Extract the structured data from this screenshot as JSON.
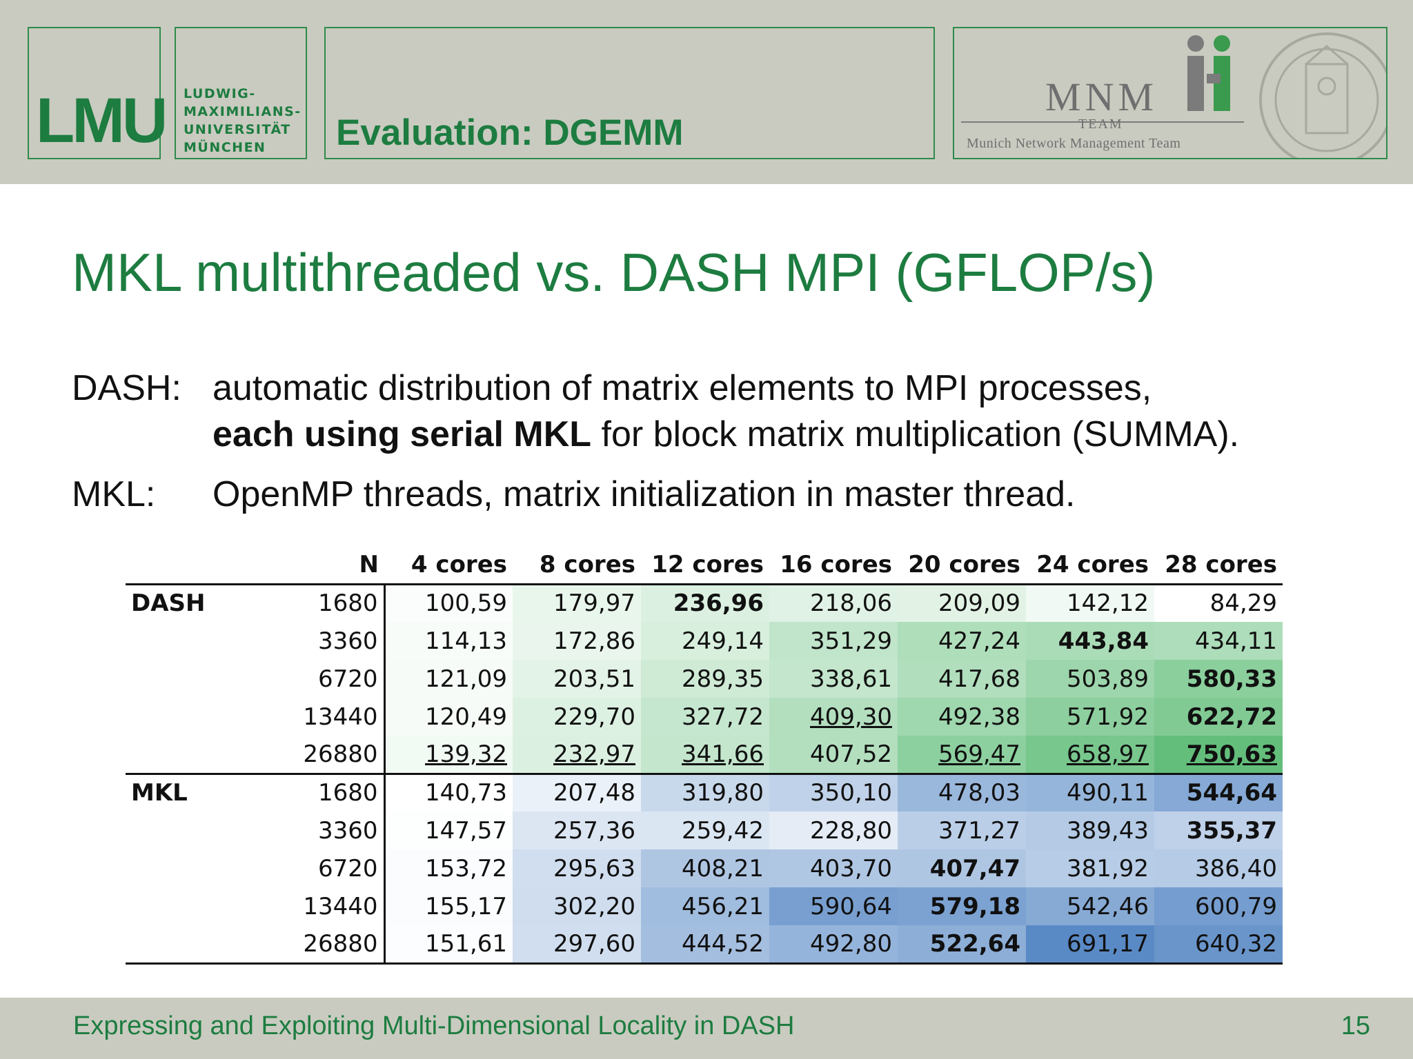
{
  "header": {
    "logo_text": "LMU",
    "university_lines": "LUDWIG-\nMAXIMILIANS-\nUNIVERSITÄT\nMÜNCHEN",
    "section_title": "Evaluation: DGEMM",
    "partner_logo": {
      "word": "MNM",
      "team": "TEAM",
      "full_name": "Munich Network Management Team"
    }
  },
  "slide": {
    "title": "MKL multithreaded vs. DASH MPI (GFLOP/s)",
    "dash_label": "DASH:",
    "dash_line1": "automatic distribution of matrix elements to MPI processes,",
    "dash_line2_bold": "each using serial MKL",
    "dash_line2_rest": " for block matrix multiplication (SUMMA).",
    "mkl_label": "MKL:",
    "mkl_line": "OpenMP threads, matrix initialization in master thread."
  },
  "table": {
    "headers": [
      "",
      "N",
      "4 cores",
      "8 cores",
      "12 cores",
      "16 cores",
      "20 cores",
      "24 cores",
      "28 cores"
    ],
    "groups": [
      {
        "label": "DASH",
        "palette": "green",
        "rows": [
          {
            "n": "1680",
            "cells": [
              "100,59",
              "179,97",
              "236,96",
              "218,06",
              "209,09",
              "142,12",
              "84,29"
            ],
            "bold": [
              2
            ],
            "underline": []
          },
          {
            "n": "3360",
            "cells": [
              "114,13",
              "172,86",
              "249,14",
              "351,29",
              "427,24",
              "443,84",
              "434,11"
            ],
            "bold": [
              5
            ],
            "underline": []
          },
          {
            "n": "6720",
            "cells": [
              "121,09",
              "203,51",
              "289,35",
              "338,61",
              "417,68",
              "503,89",
              "580,33"
            ],
            "bold": [
              6
            ],
            "underline": []
          },
          {
            "n": "13440",
            "cells": [
              "120,49",
              "229,70",
              "327,72",
              "409,30",
              "492,38",
              "571,92",
              "622,72"
            ],
            "bold": [
              6
            ],
            "underline": [
              3
            ]
          },
          {
            "n": "26880",
            "cells": [
              "139,32",
              "232,97",
              "341,66",
              "407,52",
              "569,47",
              "658,97",
              "750,63"
            ],
            "bold": [
              6
            ],
            "underline": [
              0,
              1,
              2,
              4,
              5,
              6
            ]
          }
        ]
      },
      {
        "label": "MKL",
        "palette": "blue",
        "rows": [
          {
            "n": "1680",
            "cells": [
              "140,73",
              "207,48",
              "319,80",
              "350,10",
              "478,03",
              "490,11",
              "544,64"
            ],
            "bold": [
              6
            ],
            "underline": []
          },
          {
            "n": "3360",
            "cells": [
              "147,57",
              "257,36",
              "259,42",
              "228,80",
              "371,27",
              "389,43",
              "355,37"
            ],
            "bold": [
              6
            ],
            "underline": []
          },
          {
            "n": "6720",
            "cells": [
              "153,72",
              "295,63",
              "408,21",
              "403,70",
              "407,47",
              "381,92",
              "386,40"
            ],
            "bold": [
              4
            ],
            "underline": []
          },
          {
            "n": "13440",
            "cells": [
              "155,17",
              "302,20",
              "456,21",
              "590,64",
              "579,18",
              "542,46",
              "600,79"
            ],
            "bold": [
              4
            ],
            "underline": []
          },
          {
            "n": "26880",
            "cells": [
              "151,61",
              "297,60",
              "444,52",
              "492,80",
              "522,64",
              "691,17",
              "640,32"
            ],
            "bold": [
              4
            ],
            "underline": []
          }
        ]
      }
    ]
  },
  "colors": {
    "brand_green": "#1d7c40",
    "header_bg": "#c9cbc0",
    "green_low": "#ffffff",
    "green_high": "#63be7b",
    "blue_low": "#ffffff",
    "blue_high": "#5a8ac6"
  },
  "footer": {
    "text": "Expressing and Exploiting Multi-Dimensional Locality in DASH",
    "page_number": "15"
  }
}
